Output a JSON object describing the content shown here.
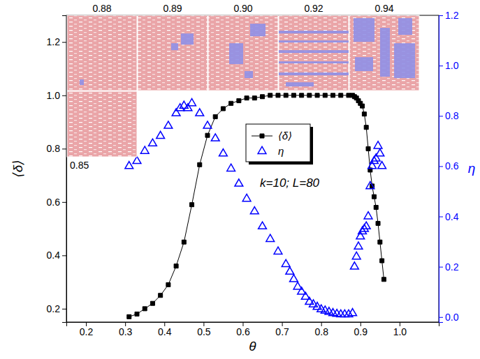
{
  "chart_data": {
    "type": "scatter",
    "x_label": "θ",
    "y_label": "⟨δ⟩",
    "y2_label": "η",
    "annotation": "k=10; L=80",
    "inset_labels": [
      "0.88",
      "0.89",
      "0.90",
      "0.92",
      "0.94",
      "0.85"
    ],
    "legend": "center",
    "xlim": [
      0.15,
      1.1
    ],
    "xticks": [
      0.2,
      0.3,
      0.4,
      0.5,
      0.6,
      0.7,
      0.8,
      0.9,
      {
        "value": 1,
        "label": "1.0"
      }
    ],
    "ylim": [
      0.15,
      1.3
    ],
    "yticks": [
      0.2,
      0.4,
      0.6,
      0.8,
      {
        "value": 1,
        "label": "1.0"
      },
      1.2
    ],
    "y2lim": [
      -0.02,
      1.2
    ],
    "y2ticks": [
      {
        "value": 0,
        "label": "0.0"
      },
      0.2,
      0.4,
      0.6,
      0.8,
      {
        "value": 1,
        "label": "1.0"
      },
      1.2
    ],
    "series": [
      {
        "name": "⟨δ⟩",
        "color": "#000000",
        "marker": "square",
        "line_style": "solid",
        "x": [
          0.31,
          0.33,
          0.35,
          0.37,
          0.39,
          0.41,
          0.43,
          0.45,
          0.47,
          0.49,
          0.51,
          0.53,
          0.55,
          0.57,
          0.59,
          0.61,
          0.63,
          0.65,
          0.67,
          0.69,
          0.71,
          0.73,
          0.75,
          0.77,
          0.79,
          0.81,
          0.83,
          0.85,
          0.87,
          0.88,
          0.885,
          0.89,
          0.895,
          0.9,
          0.905,
          0.91,
          0.915,
          0.92,
          0.925,
          0.93,
          0.935,
          0.94,
          0.945,
          0.95,
          0.955,
          0.96
        ],
        "values": [
          0.17,
          0.18,
          0.2,
          0.22,
          0.25,
          0.29,
          0.36,
          0.45,
          0.59,
          0.74,
          0.85,
          0.92,
          0.95,
          0.97,
          0.98,
          0.99,
          0.99,
          0.995,
          1,
          1,
          1,
          1,
          1,
          1,
          1,
          1,
          1,
          1,
          1,
          1,
          0.995,
          0.99,
          0.98,
          0.97,
          0.96,
          0.93,
          0.88,
          0.8,
          0.72,
          0.66,
          0.62,
          0.58,
          0.52,
          0.45,
          0.38,
          0.31
        ]
      },
      {
        "name": "η",
        "color": "#0000ff",
        "marker": "triangle",
        "line_style": "none",
        "axis": "y2",
        "x": [
          0.31,
          0.33,
          0.35,
          0.37,
          0.39,
          0.41,
          0.43,
          0.44,
          0.45,
          0.46,
          0.47,
          0.49,
          0.51,
          0.53,
          0.55,
          0.57,
          0.59,
          0.61,
          0.63,
          0.65,
          0.67,
          0.69,
          0.71,
          0.72,
          0.73,
          0.74,
          0.75,
          0.76,
          0.77,
          0.78,
          0.79,
          0.8,
          0.81,
          0.82,
          0.83,
          0.84,
          0.85,
          0.86,
          0.87,
          0.88,
          0.885,
          0.89,
          0.895,
          0.9,
          0.905,
          0.91,
          0.915,
          0.92,
          0.925,
          0.93,
          0.935,
          0.94,
          0.945,
          0.95,
          0.955
        ],
        "values": [
          0.6,
          0.62,
          0.66,
          0.69,
          0.72,
          0.76,
          0.81,
          0.83,
          0.84,
          0.83,
          0.85,
          0.81,
          0.76,
          0.71,
          0.65,
          0.59,
          0.53,
          0.47,
          0.42,
          0.36,
          0.31,
          0.26,
          0.21,
          0.18,
          0.15,
          0.12,
          0.1,
          0.08,
          0.06,
          0.05,
          0.04,
          0.03,
          0.025,
          0.02,
          0.015,
          0.012,
          0.01,
          0.01,
          0.01,
          0.015,
          0.2,
          0.24,
          0.28,
          0.32,
          0.34,
          0.35,
          0.36,
          0.4,
          0.52,
          0.6,
          0.62,
          0.63,
          0.68,
          0.65,
          0.6
        ]
      }
    ]
  }
}
